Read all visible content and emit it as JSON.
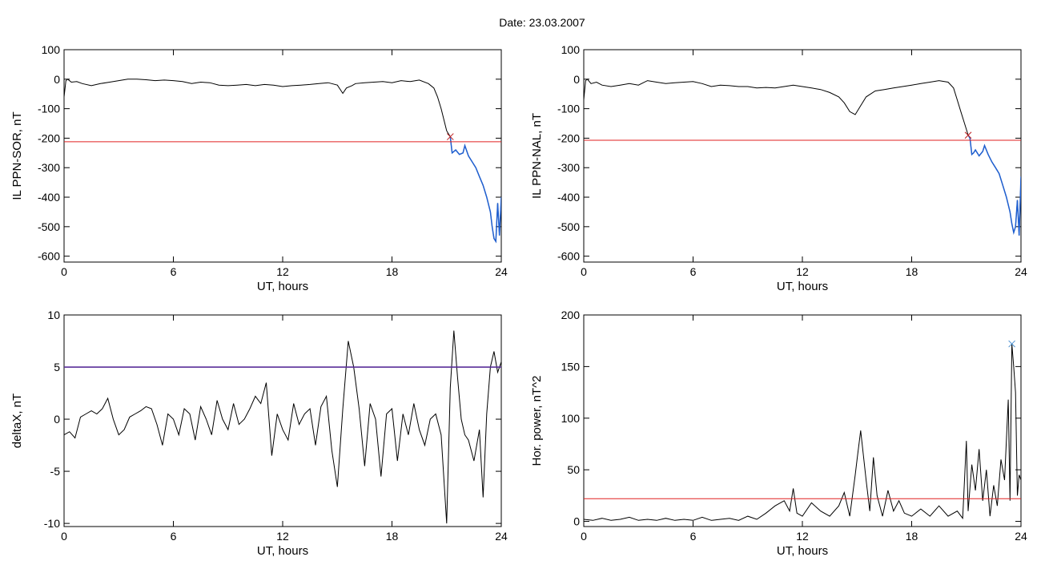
{
  "title": "Date:  23.03.2007",
  "colors": {
    "trace": "#000000",
    "threshold": "#e02020",
    "highlight": "#1f5fd0",
    "marker_red": "#c02020",
    "marker_blue": "#4a90d0",
    "marker_green": "#50c050"
  },
  "chart_data": [
    {
      "type": "line",
      "xlabel": "UT, hours",
      "ylabel": "IL PPN-SOR, nT",
      "xlim": [
        0,
        24
      ],
      "ylim": [
        -620,
        100
      ],
      "xticks": [
        0,
        6,
        12,
        18,
        24
      ],
      "yticks": [
        100,
        0,
        -100,
        -200,
        -300,
        -400,
        -500,
        -600
      ],
      "threshold": -212,
      "marker": {
        "x": 21.2,
        "y": -195
      },
      "highlight_from": 21.2,
      "series": [
        {
          "x": [
            0,
            0.1,
            0.2,
            0.4,
            0.7,
            1.0,
            1.5,
            2.0,
            2.5,
            3.0,
            3.5,
            4.0,
            4.5,
            5.0,
            5.5,
            6.0,
            6.5,
            7.0,
            7.5,
            8.0,
            8.5,
            9.0,
            9.5,
            10.0,
            10.5,
            11.0,
            11.5,
            12.0,
            12.5,
            13.0,
            13.5,
            14.0,
            14.5,
            15.0,
            15.3,
            15.5,
            15.8,
            16.0,
            16.5,
            17.0,
            17.5,
            18.0,
            18.5,
            19.0,
            19.5,
            20.0,
            20.3,
            20.5,
            20.7,
            20.9,
            21.0,
            21.1,
            21.2,
            21.3,
            21.4,
            21.5,
            21.7,
            21.9,
            22.0,
            22.2,
            22.4,
            22.6,
            22.8,
            23.0,
            23.2,
            23.4,
            23.5,
            23.6,
            23.7,
            23.8,
            23.9,
            24.0
          ],
          "y": [
            -60,
            -5,
            0,
            -10,
            -8,
            -15,
            -22,
            -15,
            -10,
            -5,
            0,
            0,
            -2,
            -5,
            -3,
            -5,
            -8,
            -15,
            -10,
            -12,
            -20,
            -22,
            -20,
            -18,
            -22,
            -18,
            -20,
            -25,
            -22,
            -20,
            -18,
            -15,
            -12,
            -20,
            -48,
            -30,
            -22,
            -15,
            -12,
            -10,
            -8,
            -12,
            -5,
            -8,
            -3,
            -15,
            -30,
            -60,
            -100,
            -150,
            -175,
            -185,
            -195,
            -250,
            -245,
            -240,
            -255,
            -250,
            -225,
            -260,
            -280,
            -300,
            -330,
            -360,
            -400,
            -450,
            -500,
            -540,
            -550,
            -420,
            -530,
            -400
          ]
        }
      ]
    },
    {
      "type": "line",
      "xlabel": "UT, hours",
      "ylabel": "IL PPN-NAL, nT",
      "xlim": [
        0,
        24
      ],
      "ylim": [
        -620,
        100
      ],
      "xticks": [
        0,
        6,
        12,
        18,
        24
      ],
      "yticks": [
        100,
        0,
        -100,
        -200,
        -300,
        -400,
        -500,
        -600
      ],
      "threshold": -207,
      "marker": {
        "x": 21.1,
        "y": -190
      },
      "highlight_from": 21.1,
      "series": [
        {
          "x": [
            0,
            0.1,
            0.2,
            0.4,
            0.7,
            1.0,
            1.5,
            2.0,
            2.5,
            3.0,
            3.5,
            4.0,
            4.5,
            5.0,
            5.5,
            6.0,
            6.5,
            7.0,
            7.5,
            8.0,
            8.5,
            9.0,
            9.5,
            10.0,
            10.5,
            11.0,
            11.5,
            12.0,
            12.5,
            13.0,
            13.5,
            14.0,
            14.3,
            14.6,
            14.9,
            15.2,
            15.5,
            16.0,
            16.5,
            17.0,
            17.5,
            18.0,
            18.5,
            19.0,
            19.5,
            20.0,
            20.3,
            20.5,
            20.7,
            20.9,
            21.0,
            21.1,
            21.2,
            21.3,
            21.4,
            21.5,
            21.7,
            21.9,
            22.0,
            22.2,
            22.4,
            22.6,
            22.8,
            23.0,
            23.2,
            23.4,
            23.5,
            23.6,
            23.7,
            23.8,
            23.9,
            24.0
          ],
          "y": [
            -70,
            -5,
            0,
            -15,
            -10,
            -20,
            -25,
            -20,
            -15,
            -20,
            -5,
            -10,
            -15,
            -12,
            -10,
            -8,
            -15,
            -25,
            -20,
            -22,
            -25,
            -25,
            -30,
            -28,
            -30,
            -25,
            -20,
            -25,
            -30,
            -35,
            -45,
            -60,
            -80,
            -110,
            -120,
            -90,
            -60,
            -40,
            -35,
            -30,
            -25,
            -20,
            -15,
            -10,
            -5,
            -10,
            -30,
            -70,
            -110,
            -150,
            -170,
            -190,
            -200,
            -255,
            -250,
            -240,
            -260,
            -245,
            -225,
            -255,
            -280,
            -300,
            -320,
            -360,
            -400,
            -450,
            -490,
            -520,
            -500,
            -410,
            -530,
            -330
          ]
        }
      ]
    },
    {
      "type": "line",
      "xlabel": "UT, hours",
      "ylabel": "deltaX, nT",
      "xlim": [
        0,
        24
      ],
      "ylim": [
        -10.3,
        10
      ],
      "xticks": [
        0,
        6,
        12,
        18,
        24
      ],
      "yticks": [
        10,
        5,
        0,
        -5,
        -10
      ],
      "threshold": 5,
      "series": [
        {
          "x": [
            0,
            0.3,
            0.6,
            0.9,
            1.2,
            1.5,
            1.8,
            2.1,
            2.4,
            2.7,
            3.0,
            3.3,
            3.6,
            3.9,
            4.2,
            4.5,
            4.8,
            5.1,
            5.4,
            5.7,
            6.0,
            6.3,
            6.6,
            6.9,
            7.2,
            7.5,
            7.8,
            8.1,
            8.4,
            8.7,
            9.0,
            9.3,
            9.6,
            9.9,
            10.2,
            10.5,
            10.8,
            11.1,
            11.4,
            11.7,
            12.0,
            12.3,
            12.6,
            12.9,
            13.2,
            13.5,
            13.8,
            14.1,
            14.4,
            14.7,
            15.0,
            15.3,
            15.6,
            15.9,
            16.2,
            16.5,
            16.8,
            17.1,
            17.4,
            17.7,
            18.0,
            18.3,
            18.6,
            18.9,
            19.2,
            19.5,
            19.8,
            20.1,
            20.4,
            20.7,
            21.0,
            21.2,
            21.4,
            21.6,
            21.8,
            22.0,
            22.2,
            22.5,
            22.8,
            23.0,
            23.2,
            23.4,
            23.6,
            23.8,
            24.0
          ],
          "y": [
            -1.5,
            -1.2,
            -1.8,
            0.2,
            0.5,
            0.8,
            0.5,
            1.0,
            2.0,
            0.0,
            -1.5,
            -1.0,
            0.2,
            0.5,
            0.8,
            1.2,
            1.0,
            -0.5,
            -2.5,
            0.5,
            0.0,
            -1.5,
            1.0,
            0.5,
            -2.0,
            1.2,
            0.0,
            -1.5,
            1.8,
            0.0,
            -1.0,
            1.5,
            -0.5,
            0.0,
            1.0,
            2.2,
            1.5,
            3.5,
            -3.5,
            0.5,
            -1.0,
            -2.0,
            1.5,
            -0.5,
            0.5,
            1.0,
            -2.5,
            1.2,
            2.2,
            -3.0,
            -6.5,
            1.0,
            7.5,
            5.0,
            1.0,
            -4.5,
            1.5,
            0.0,
            -5.5,
            0.5,
            1.0,
            -4.0,
            0.5,
            -1.5,
            1.5,
            -1.0,
            -2.5,
            0.0,
            0.5,
            -1.5,
            -10.0,
            3.0,
            8.5,
            4.0,
            0.0,
            -1.5,
            -2.0,
            -4.0,
            -1.0,
            -7.5,
            0.5,
            5.0,
            6.5,
            4.5,
            5.5
          ]
        }
      ]
    },
    {
      "type": "line",
      "xlabel": "UT, hours",
      "ylabel": "Hor. power, nT^2",
      "xlim": [
        0,
        24
      ],
      "ylim": [
        -5,
        200
      ],
      "xticks": [
        0,
        6,
        12,
        18,
        24
      ],
      "yticks": [
        200,
        150,
        100,
        50,
        0
      ],
      "threshold": 22,
      "marker": {
        "x": 23.5,
        "y": 172
      },
      "series": [
        {
          "x": [
            0,
            0.5,
            1.0,
            1.5,
            2.0,
            2.5,
            3.0,
            3.5,
            4.0,
            4.5,
            5.0,
            5.5,
            6.0,
            6.5,
            7.0,
            7.5,
            8.0,
            8.5,
            9.0,
            9.5,
            10.0,
            10.5,
            11.0,
            11.3,
            11.5,
            11.7,
            12.0,
            12.5,
            13.0,
            13.5,
            14.0,
            14.3,
            14.6,
            14.9,
            15.0,
            15.2,
            15.5,
            15.7,
            15.9,
            16.1,
            16.4,
            16.7,
            17.0,
            17.3,
            17.6,
            18.0,
            18.5,
            19.0,
            19.5,
            20.0,
            20.5,
            20.8,
            21.0,
            21.1,
            21.3,
            21.5,
            21.7,
            21.9,
            22.1,
            22.3,
            22.5,
            22.7,
            22.9,
            23.1,
            23.3,
            23.4,
            23.5,
            23.6,
            23.7,
            23.8,
            23.9,
            24.0
          ],
          "y": [
            2,
            1,
            3,
            1,
            2,
            4,
            1,
            2,
            1,
            3,
            1,
            2,
            1,
            4,
            1,
            2,
            3,
            1,
            5,
            2,
            8,
            15,
            20,
            10,
            32,
            8,
            5,
            18,
            10,
            5,
            15,
            28,
            5,
            45,
            60,
            88,
            40,
            10,
            62,
            25,
            5,
            30,
            10,
            20,
            8,
            5,
            12,
            5,
            15,
            5,
            10,
            3,
            78,
            10,
            55,
            30,
            70,
            20,
            50,
            5,
            35,
            15,
            60,
            40,
            118,
            20,
            172,
            150,
            125,
            25,
            45,
            40
          ]
        }
      ]
    }
  ]
}
